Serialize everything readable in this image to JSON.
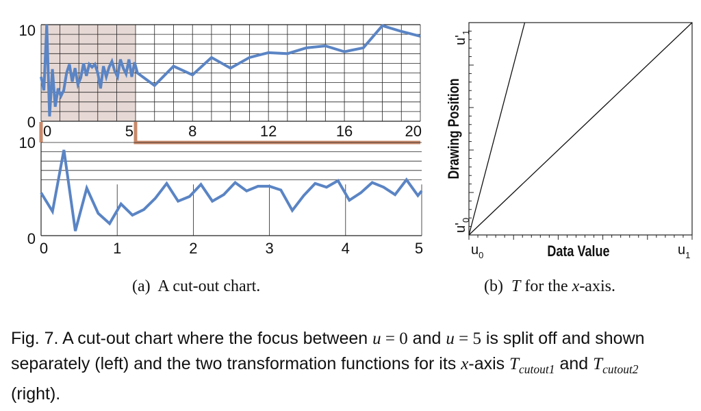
{
  "colors": {
    "line": "#5a84c4",
    "focus_fill": "#e6d8d4",
    "cut": "#c8896a",
    "grid": "#222222"
  },
  "chart_data": [
    {
      "type": "line",
      "panel": "cut-out chart, context (top)",
      "ylim": [
        0,
        10
      ],
      "y_ticks": [
        "0",
        "10"
      ],
      "x_ticks": [
        "0",
        "5",
        "8",
        "12",
        "16",
        "20"
      ],
      "focus_region": [
        0,
        5
      ],
      "series": [
        {
          "x": [
            0,
            0.15,
            0.3,
            0.45,
            0.6,
            0.75,
            0.9,
            1.05,
            1.2,
            1.35,
            1.5,
            1.65,
            1.8,
            1.95,
            2.1,
            2.25,
            2.4,
            2.55,
            2.7,
            2.85,
            3.0,
            3.15,
            3.3,
            3.45,
            3.6,
            3.75,
            3.9,
            4.05,
            4.2,
            4.35,
            4.5,
            4.65,
            4.8,
            4.95,
            5.1,
            6,
            7,
            8,
            9,
            10,
            11,
            12,
            13,
            14,
            15,
            16,
            17,
            18,
            19,
            20
          ],
          "y": [
            4.6,
            3.2,
            10.0,
            0.5,
            5.4,
            1.5,
            3.4,
            2.6,
            3.2,
            5.0,
            5.9,
            4.1,
            5.5,
            3.8,
            4.5,
            6.0,
            4.7,
            5.9,
            5.6,
            5.9,
            5.0,
            3.4,
            5.7,
            4.6,
            5.6,
            6.2,
            5.2,
            4.6,
            6.4,
            5.5,
            4.9,
            6.4,
            4.6,
            6.1,
            5.0,
            3.7,
            5.7,
            4.8,
            6.6,
            5.5,
            6.6,
            7.1,
            7.0,
            7.6,
            7.8,
            7.2,
            7.6,
            9.9,
            9.3,
            8.8
          ]
        }
      ]
    },
    {
      "type": "line",
      "panel": "cut-out chart, focus (bottom)",
      "ylim": [
        0,
        10
      ],
      "y_ticks": [
        "0",
        "10"
      ],
      "x_ticks": [
        "0",
        "1",
        "2",
        "3",
        "4",
        "5"
      ],
      "series": [
        {
          "x": [
            0,
            0.15,
            0.3,
            0.45,
            0.6,
            0.75,
            0.9,
            1.05,
            1.2,
            1.35,
            1.5,
            1.65,
            1.8,
            1.95,
            2.1,
            2.25,
            2.4,
            2.55,
            2.7,
            2.85,
            3.0,
            3.15,
            3.3,
            3.45,
            3.6,
            3.75,
            3.9,
            4.05,
            4.2,
            4.35,
            4.5,
            4.65,
            4.8,
            4.95,
            5.0
          ],
          "y": [
            4.6,
            2.6,
            9.2,
            0.5,
            5.1,
            2.4,
            1.3,
            3.4,
            2.2,
            2.8,
            4.0,
            5.6,
            3.7,
            4.2,
            5.5,
            3.7,
            4.4,
            5.7,
            4.8,
            5.3,
            5.3,
            4.9,
            2.7,
            4.3,
            5.6,
            5.2,
            5.9,
            3.8,
            4.6,
            5.7,
            5.2,
            4.4,
            6.0,
            4.3,
            4.8
          ]
        }
      ]
    },
    {
      "type": "line",
      "panel": "transformation functions",
      "xlabel": "Data Value",
      "ylabel": "Drawing Position",
      "x_endpoint_labels": [
        "u",
        "u"
      ],
      "x_endpoint_subscripts": [
        "0",
        "1"
      ],
      "y_endpoint_labels": [
        "u'",
        "u'"
      ],
      "y_endpoint_subscripts": [
        "0",
        "1"
      ],
      "series": [
        {
          "x": [
            0,
            0.25
          ],
          "y": [
            0,
            1
          ]
        },
        {
          "x": [
            0,
            1
          ],
          "y": [
            0,
            1
          ]
        }
      ]
    }
  ],
  "subcaptions": {
    "a": {
      "label": "(a)",
      "text": "A cut-out chart."
    },
    "b": {
      "label": "(b)",
      "math": "T",
      "text_1": "for the",
      "math_2": "x",
      "text_2": "-axis."
    }
  },
  "caption": {
    "prefix": "Fig. 7.",
    "part1": "A cut-out chart where the focus between",
    "eq1_var": "u",
    "eq1_rest": " = 0",
    "and": "and",
    "eq2_var": "u",
    "eq2_rest": " = 5",
    "part2": "is split off and shown separately (left) and the two transformation functions for its",
    "x_var": "x",
    "part3": "-axis",
    "t_base": "T",
    "t1_sub": "cutout1",
    "between": "and",
    "t2_sub": "cutout2",
    "suffix": "(right)."
  }
}
